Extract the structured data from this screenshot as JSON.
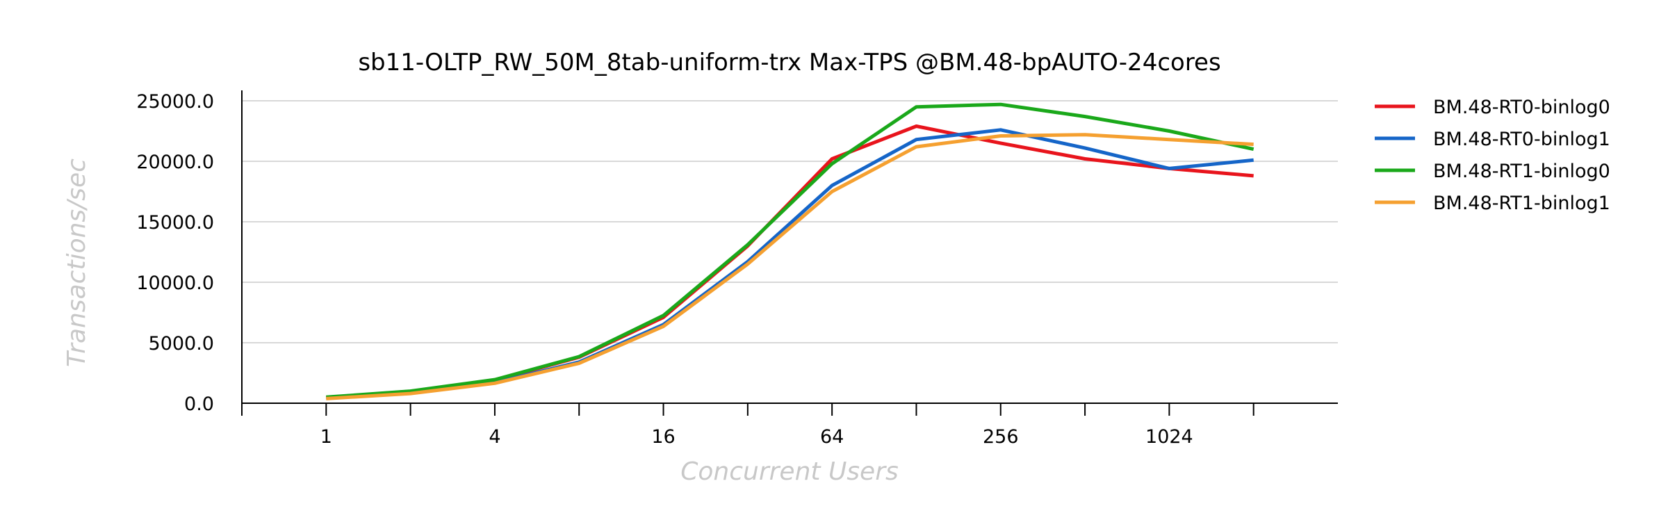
{
  "chart_data": {
    "type": "line",
    "title": "sb11-OLTP_RW_50M_8tab-uniform-trx Max-TPS @BM.48-bpAUTO-24cores",
    "xlabel": "Concurrent Users",
    "ylabel": "Transactions/sec",
    "x_scale": "log2",
    "x": [
      1,
      2,
      4,
      8,
      16,
      32,
      64,
      128,
      256,
      512,
      1024,
      2048
    ],
    "x_tick_labels": [
      "1",
      "4",
      "16",
      "64",
      "256",
      "1024"
    ],
    "x_tick_values": [
      1,
      4,
      16,
      64,
      256,
      1024
    ],
    "ylim": [
      0,
      25000
    ],
    "y_ticks": [
      0,
      5000,
      10000,
      15000,
      20000,
      25000
    ],
    "y_tick_labels": [
      "0.0",
      "5000.0",
      "10000.0",
      "15000.0",
      "20000.0",
      "25000.0"
    ],
    "grid": "horizontal",
    "legend_position": "right",
    "series": [
      {
        "name": "BM.48-RT0-binlog0",
        "color": "#e8141c",
        "values": [
          480,
          980,
          1900,
          3800,
          7100,
          13000,
          20200,
          22900,
          21500,
          20200,
          19400,
          18800
        ]
      },
      {
        "name": "BM.48-RT0-binlog1",
        "color": "#1565c8",
        "values": [
          400,
          830,
          1700,
          3400,
          6500,
          11700,
          18000,
          21800,
          22600,
          21100,
          19400,
          20100
        ]
      },
      {
        "name": "BM.48-RT1-binlog0",
        "color": "#1aa81a",
        "values": [
          500,
          1000,
          1950,
          3850,
          7250,
          13100,
          19800,
          24500,
          24700,
          23700,
          22500,
          21000
        ]
      },
      {
        "name": "BM.48-RT1-binlog1",
        "color": "#f5a030",
        "values": [
          380,
          800,
          1650,
          3300,
          6350,
          11500,
          17500,
          21200,
          22100,
          22200,
          21800,
          21400
        ]
      }
    ]
  }
}
